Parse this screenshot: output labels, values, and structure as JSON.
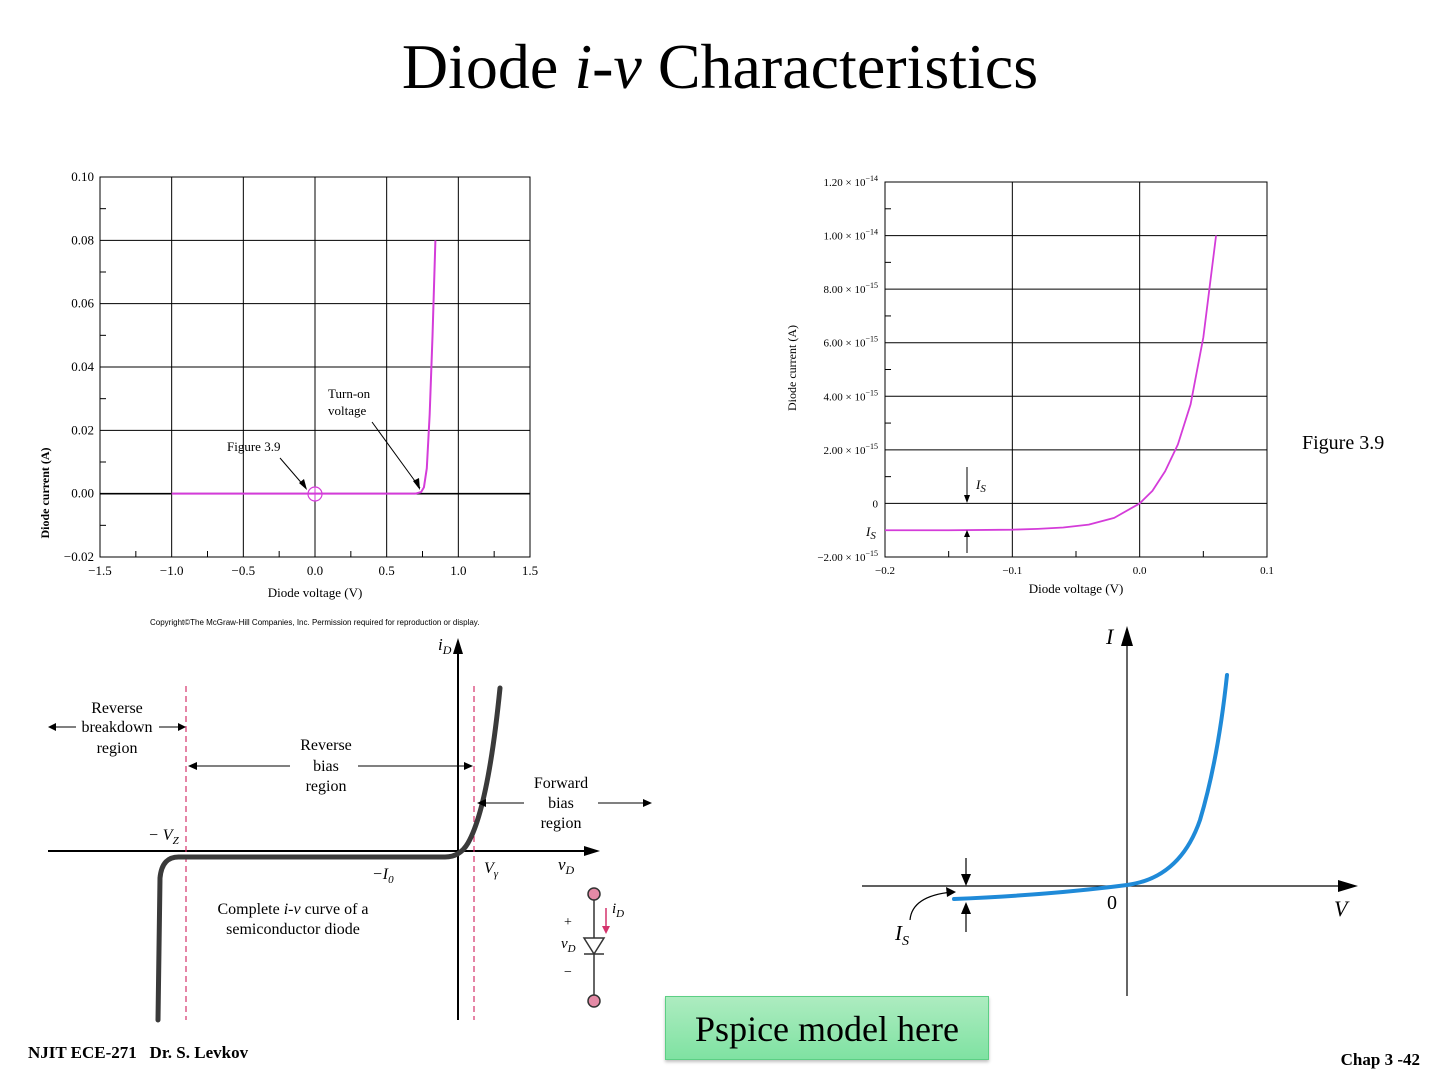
{
  "slide": {
    "title_pre": "Diode ",
    "title_em": "i-v",
    "title_post": " Characteristics",
    "figure_label": "Figure 3.9",
    "copyright": "Copyright©The McGraw-Hill Companies, Inc. Permission required for reproduction or display.",
    "pspice_label": "Pspice model here",
    "footer_left": "NJIT ECE-271   Dr. S. Levkov",
    "footer_right": "Chap 3 -42"
  },
  "chart_data": [
    {
      "type": "line",
      "xlabel": "Diode voltage (V)",
      "ylabel": "Diode current (A)",
      "xlim": [
        -1.5,
        1.5
      ],
      "ylim": [
        -0.02,
        0.1
      ],
      "x_ticks": [
        "−1.5",
        "−1.0",
        "−0.5",
        "0.0",
        "0.5",
        "1.0",
        "1.5"
      ],
      "y_ticks": [
        "−0.02",
        "0.00",
        "0.02",
        "0.04",
        "0.06",
        "0.08",
        "0.10"
      ],
      "grid": true,
      "series": [
        {
          "color": "#d43cd9",
          "x": [
            -1.0,
            0.0,
            0.7,
            0.74,
            0.76,
            0.78,
            0.8,
            0.82,
            0.84
          ],
          "y": [
            0.0,
            0.0,
            0.0,
            0.0005,
            0.002,
            0.008,
            0.025,
            0.05,
            0.08
          ]
        }
      ],
      "annotations": [
        {
          "text": "Turn-on",
          "text2": "voltage"
        },
        {
          "text": "Figure 3.9"
        }
      ]
    },
    {
      "type": "line",
      "xlabel": "Diode voltage (V)",
      "ylabel": "Diode current (A)",
      "xlim": [
        -0.2,
        0.1
      ],
      "ylim": [
        -2e-15,
        1.2e-14
      ],
      "x_ticks": [
        "−0.2",
        "−0.1",
        "0.0",
        "0.1"
      ],
      "y_ticks": [
        {
          "m": "−2.00 × 10",
          "e": "−15"
        },
        {
          "m": "0",
          "e": ""
        },
        {
          "m": "2.00 × 10",
          "e": "−15"
        },
        {
          "m": "4.00 × 10",
          "e": "−15"
        },
        {
          "m": "6.00 × 10",
          "e": "−15"
        },
        {
          "m": "8.00 × 10",
          "e": "−15"
        },
        {
          "m": "1.00 × 10",
          "e": "−14"
        },
        {
          "m": "1.20 × 10",
          "e": "−14"
        }
      ],
      "grid": true,
      "series": [
        {
          "color": "#d43cd9",
          "x": [
            -0.2,
            -0.15,
            -0.1,
            -0.08,
            -0.06,
            -0.04,
            -0.02,
            0.0,
            0.01,
            0.02,
            0.03,
            0.04,
            0.05,
            0.06
          ],
          "y": [
            -1e-15,
            -1e-15,
            -9.8e-16,
            -9.5e-16,
            -9e-16,
            -7.9e-16,
            -5.4e-16,
            0.0,
            4.7e-16,
            1.2e-15,
            2.2e-15,
            3.7e-15,
            6.2e-15,
            1e-14
          ]
        }
      ],
      "annotations": [
        {
          "text": "I",
          "sub": "S"
        },
        {
          "text": "I",
          "sub": "S"
        }
      ]
    }
  ],
  "diagram_bl": {
    "axis_y": "i",
    "axis_y_sub": "D",
    "axis_x": "v",
    "axis_x_sub": "D",
    "reverse_breakdown": [
      "Reverse",
      "breakdown",
      "region"
    ],
    "reverse_bias": [
      "Reverse",
      "bias",
      "region"
    ],
    "forward_bias": [
      "Forward",
      "bias",
      "region"
    ],
    "vz": "− V",
    "vz_sub": "Z",
    "io": "−I",
    "io_sub": "0",
    "vgamma": "V",
    "vgamma_sub": "γ",
    "caption1_pre": "Complete ",
    "caption1_em": "i-v",
    "caption1_post": " curve of a",
    "caption2": "semiconductor diode",
    "id_label": "i",
    "id_sub": "D",
    "vd_label": "v",
    "vd_sub": "D",
    "plus": "+",
    "minus": "−"
  },
  "diagram_br": {
    "axis_y": "I",
    "axis_x": "V",
    "origin": "0",
    "is_label": "I",
    "is_sub": "S",
    "curve_color": "#1f8ad8"
  }
}
